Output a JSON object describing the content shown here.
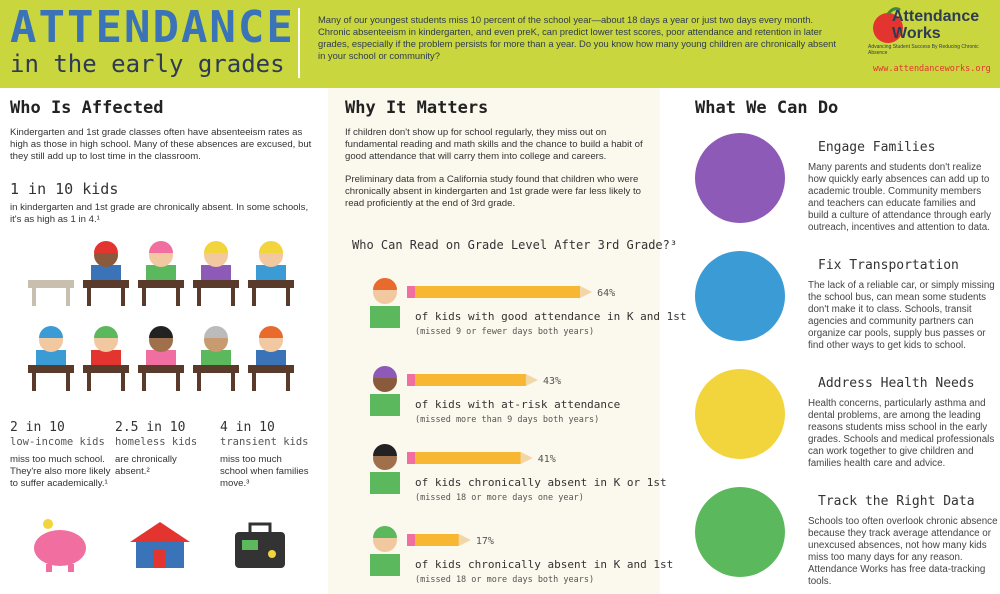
{
  "header": {
    "title": "ATTENDANCE",
    "subtitle": "in the early grades",
    "intro": "Many of our youngest students miss 10 percent of the school year—about 18 days a year or just two days every month.  Chronic absenteeism in kindergarten, and even preK, can predict lower test scores, poor attendance and retention in later grades, especially if the problem persists for more than a year. Do you know how many young children are chronically absent in your school or community?",
    "logo": "Attendance Works",
    "tagline": "Advancing Student Success By Reducing Chronic Absence",
    "url": "www.attendanceworks.org"
  },
  "affected": {
    "heading": "Who Is Affected",
    "text": "Kindergarten and 1st grade classes often have absenteeism rates as high as those in high school. Many of these absences are excused, but they still add up to lost time in the classroom.",
    "stat": "1 in 10 kids",
    "stat_text": "in kindergarten and 1st grade are chronically absent. In some schools, it's as high as 1 in 4.¹",
    "groups": [
      {
        "stat": "2 in 10",
        "who": "low-income kids",
        "text": "miss too much school. They're also more likely to suffer academically.¹"
      },
      {
        "stat": "2.5 in 10",
        "who": "homeless kids",
        "text": "are chronically absent.²"
      },
      {
        "stat": "4 in 10",
        "who": "transient kids",
        "text": "miss too much school when families move.³"
      }
    ]
  },
  "matters": {
    "heading": "Why It Matters",
    "text1": "If children don't show up for school regularly, they miss out on fundamental reading and math skills and the chance to build a habit of good attendance that will carry them into college and careers.",
    "text2": "Preliminary data from a California study found that children who were chronically absent in kindergarten and 1st grade were far less likely to read proficiently at the end of 3rd grade."
  },
  "chart_data": {
    "type": "bar",
    "title": "Who Can Read on Grade Level After 3rd Grade?³",
    "categories": [
      "of kids with good attendance in K and 1st",
      "of kids with at-risk attendance",
      "of kids chronically absent in K or 1st",
      "of kids chronically absent in K and 1st"
    ],
    "notes": [
      "(missed 9 or fewer days both years)",
      "(missed more than 9 days both years)",
      "(missed 18 or more days one year)",
      "(missed 18 or more days both years)"
    ],
    "values": [
      64,
      43,
      41,
      17
    ],
    "value_labels": [
      "64%",
      "43%",
      "41%",
      "17%"
    ],
    "xlim": [
      0,
      100
    ],
    "color": "#f7b733"
  },
  "actions": {
    "heading": "What We Can Do",
    "items": [
      {
        "title": "Engage Families",
        "text": "Many parents and students don't realize how quickly early absences can add up to academic trouble. Community members and teachers can educate families and build a culture of attendance through early outreach, incentives and attention to data."
      },
      {
        "title": "Fix Transportation",
        "text": "The lack of a reliable car, or simply missing the school bus, can mean some students don't make it to class. Schools, transit agencies and community partners can organize car pools, supply bus passes or find other ways to get kids to school."
      },
      {
        "title": "Address Health Needs",
        "text": "Health concerns, particularly asthma and dental problems, are among the leading reasons students miss school in the early grades. Schools and medical professionals can work together to give children and families health care and advice."
      },
      {
        "title": "Track the Right Data",
        "text": "Schools too often overlook chronic absence because they track average attendance or unexcused absences, not how many kids miss too many days for any reason. Attendance Works has free data-tracking tools."
      }
    ]
  }
}
